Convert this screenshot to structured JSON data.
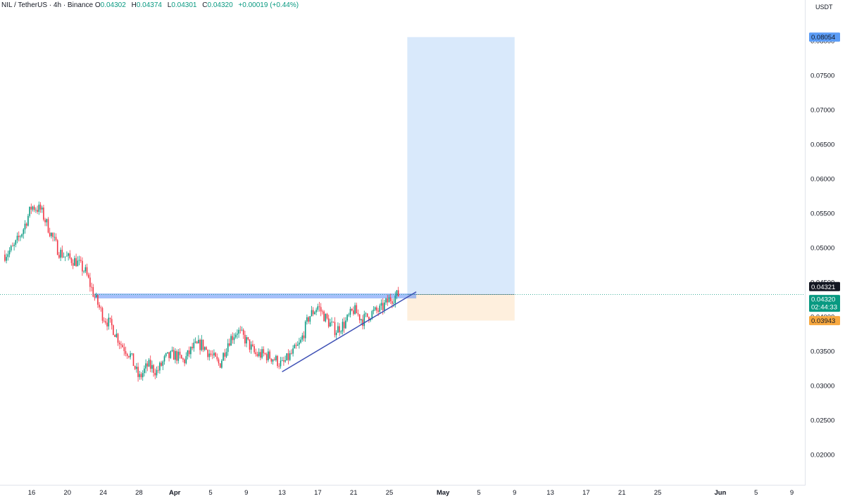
{
  "legend": {
    "symbol": "NIL / TetherUS · 4h · Binance",
    "open_label": "O",
    "open": "0.04302",
    "high_label": "H",
    "high": "0.04374",
    "low_label": "L",
    "low": "0.04301",
    "close_label": "C",
    "close": "0.04320",
    "change": "+0.00019 (+0.44%)"
  },
  "currency": "USDT",
  "price_tags": {
    "target": "0.08054",
    "last": "0.04321",
    "current": "0.04320",
    "countdown": "02:44:33",
    "stop": "0.03943"
  },
  "colors": {
    "up": "#089981",
    "down": "#f23645",
    "target_tag": "#5b9cf6",
    "stop_tag": "#f7a840",
    "trendline": "#3f51b5"
  },
  "chart_data": {
    "type": "candlestick",
    "timeframe": "4h",
    "y_ticks": [
      "0.02000",
      "0.02500",
      "0.03000",
      "0.03500",
      "0.04000",
      "0.04500",
      "0.05000",
      "0.05500",
      "0.06000",
      "0.06500",
      "0.07000",
      "0.07500",
      "0.08000"
    ],
    "ylim": [
      0.0165,
      0.0855
    ],
    "x_ticks": [
      {
        "label": "16",
        "date": "Mar 16"
      },
      {
        "label": "20",
        "date": "Mar 20"
      },
      {
        "label": "24",
        "date": "Mar 24"
      },
      {
        "label": "28",
        "date": "Mar 28"
      },
      {
        "label": "Apr",
        "date": "Apr 1"
      },
      {
        "label": "5",
        "date": "Apr 5"
      },
      {
        "label": "9",
        "date": "Apr 9"
      },
      {
        "label": "13",
        "date": "Apr 13"
      },
      {
        "label": "17",
        "date": "Apr 17"
      },
      {
        "label": "21",
        "date": "Apr 21"
      },
      {
        "label": "25",
        "date": "Apr 25"
      },
      {
        "label": "May",
        "date": "May 1"
      },
      {
        "label": "5",
        "date": "May 5"
      },
      {
        "label": "9",
        "date": "May 9"
      },
      {
        "label": "13",
        "date": "May 13"
      },
      {
        "label": "17",
        "date": "May 17"
      },
      {
        "label": "21",
        "date": "May 21"
      },
      {
        "label": "25",
        "date": "May 25"
      },
      {
        "label": "Jun",
        "date": "Jun 1"
      },
      {
        "label": "5",
        "date": "Jun 5"
      },
      {
        "label": "9",
        "date": "Jun 9"
      }
    ],
    "price_path": [
      {
        "date": "Mar 13",
        "close": 0.049
      },
      {
        "date": "Mar 14",
        "close": 0.05
      },
      {
        "date": "Mar 15",
        "close": 0.0525
      },
      {
        "date": "Mar 16",
        "close": 0.056
      },
      {
        "date": "Mar 17",
        "close": 0.0555
      },
      {
        "date": "Mar 18",
        "close": 0.0525
      },
      {
        "date": "Mar 19",
        "close": 0.0495
      },
      {
        "date": "Mar 20",
        "close": 0.0485
      },
      {
        "date": "Mar 21",
        "close": 0.048
      },
      {
        "date": "Mar 22",
        "close": 0.0465
      },
      {
        "date": "Mar 23",
        "close": 0.043
      },
      {
        "date": "Mar 24",
        "close": 0.04
      },
      {
        "date": "Mar 25",
        "close": 0.0385
      },
      {
        "date": "Mar 26",
        "close": 0.036
      },
      {
        "date": "Mar 27",
        "close": 0.0345
      },
      {
        "date": "Mar 28",
        "close": 0.031
      },
      {
        "date": "Mar 29",
        "close": 0.033
      },
      {
        "date": "Mar 30",
        "close": 0.032
      },
      {
        "date": "Mar 31",
        "close": 0.034
      },
      {
        "date": "Apr 1",
        "close": 0.0345
      },
      {
        "date": "Apr 2",
        "close": 0.0335
      },
      {
        "date": "Apr 3",
        "close": 0.0355
      },
      {
        "date": "Apr 4",
        "close": 0.036
      },
      {
        "date": "Apr 5",
        "close": 0.0345
      },
      {
        "date": "Apr 6",
        "close": 0.033
      },
      {
        "date": "Apr 7",
        "close": 0.0365
      },
      {
        "date": "Apr 8",
        "close": 0.038
      },
      {
        "date": "Apr 9",
        "close": 0.0365
      },
      {
        "date": "Apr 10",
        "close": 0.0345
      },
      {
        "date": "Apr 11",
        "close": 0.0345
      },
      {
        "date": "Apr 12",
        "close": 0.034
      },
      {
        "date": "Apr 13",
        "close": 0.033
      },
      {
        "date": "Apr 14",
        "close": 0.0345
      },
      {
        "date": "Apr 15",
        "close": 0.036
      },
      {
        "date": "Apr 16",
        "close": 0.04
      },
      {
        "date": "Apr 17",
        "close": 0.0415
      },
      {
        "date": "Apr 18",
        "close": 0.0395
      },
      {
        "date": "Apr 19",
        "close": 0.038
      },
      {
        "date": "Apr 20",
        "close": 0.039
      },
      {
        "date": "Apr 21",
        "close": 0.041
      },
      {
        "date": "Apr 22",
        "close": 0.0395
      },
      {
        "date": "Apr 23",
        "close": 0.0405
      },
      {
        "date": "Apr 24",
        "close": 0.041
      },
      {
        "date": "Apr 25",
        "close": 0.0425
      },
      {
        "date": "Apr 26",
        "close": 0.0432
      }
    ],
    "annotations": {
      "resistance_zone": {
        "from": "Mar 23",
        "to": "Apr 28",
        "price": 0.043
      },
      "trendline": {
        "from": {
          "date": "Apr 13",
          "price": 0.032
        },
        "to": {
          "date": "Apr 28",
          "price": 0.0436
        }
      },
      "long_position": {
        "from": "Apr 27",
        "to": "May 9",
        "entry": 0.04321,
        "target": 0.08054,
        "stop": 0.03943
      }
    }
  }
}
